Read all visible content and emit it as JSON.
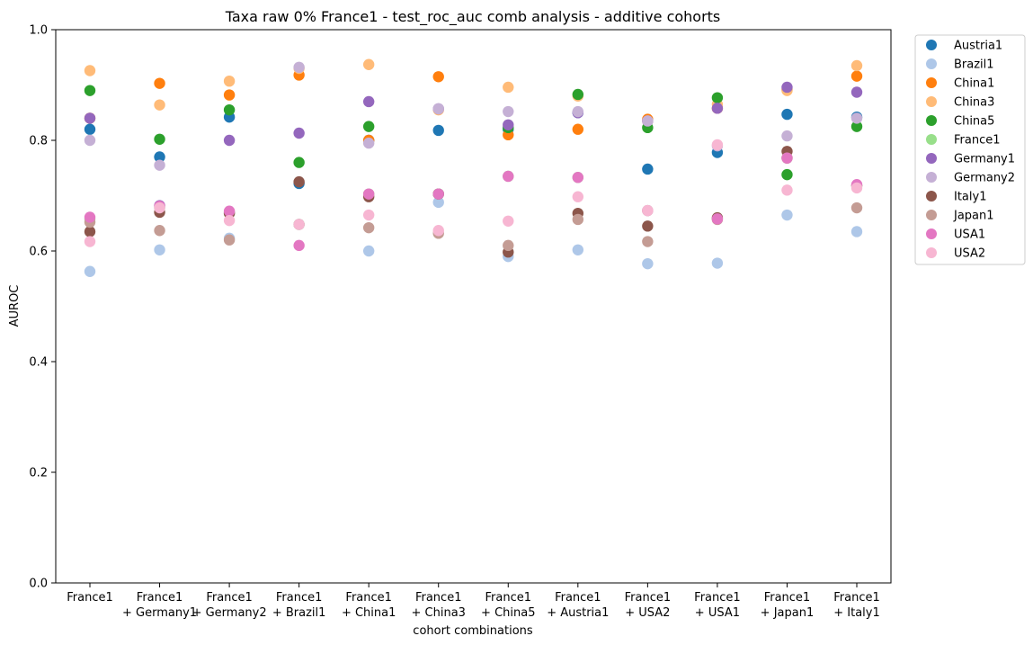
{
  "chart_data": {
    "type": "scatter",
    "title": "Taxa raw 0% France1 - test_roc_auc comb analysis - additive cohorts",
    "xlabel": "cohort combinations",
    "ylabel": "AUROC",
    "ylim": [
      0,
      1.0
    ],
    "yticks": [
      "0.0",
      "0.2",
      "0.4",
      "0.6",
      "0.8",
      "1.0"
    ],
    "categories": [
      [
        "France1"
      ],
      [
        "France1",
        "+ Germany1"
      ],
      [
        "France1",
        "+ Germany2"
      ],
      [
        "France1",
        "+ Brazil1"
      ],
      [
        "France1",
        "+ China1"
      ],
      [
        "France1",
        "+ China3"
      ],
      [
        "France1",
        "+ China5"
      ],
      [
        "France1",
        "+ Austria1"
      ],
      [
        "France1",
        "+ USA2"
      ],
      [
        "France1",
        "+ USA1"
      ],
      [
        "France1",
        "+ Japan1"
      ],
      [
        "France1",
        "+ Italy1"
      ]
    ],
    "legend_position": "outside top-right",
    "grid": false,
    "series": [
      {
        "name": "Austria1",
        "color": "#1f77b4",
        "values": [
          0.82,
          0.77,
          0.842,
          0.722,
          0.8,
          0.818,
          0.82,
          0.85,
          0.748,
          0.778,
          0.847,
          0.842
        ]
      },
      {
        "name": "Brazil1",
        "color": "#aec7e8",
        "values": [
          0.563,
          0.602,
          0.623,
          0.648,
          0.6,
          0.688,
          0.59,
          0.602,
          0.577,
          0.578,
          0.665,
          0.635
        ]
      },
      {
        "name": "China1",
        "color": "#ff7f0e",
        "values": [
          0.84,
          0.903,
          0.882,
          0.918,
          0.8,
          0.915,
          0.81,
          0.82,
          0.838,
          0.858,
          0.892,
          0.916
        ]
      },
      {
        "name": "China3",
        "color": "#ffbb78",
        "values": [
          0.926,
          0.864,
          0.907,
          0.93,
          0.937,
          0.855,
          0.896,
          0.88,
          0.835,
          0.865,
          0.89,
          0.935
        ]
      },
      {
        "name": "China5",
        "color": "#2ca02c",
        "values": [
          0.89,
          0.802,
          0.855,
          0.76,
          0.825,
          0.703,
          0.823,
          0.883,
          0.823,
          0.877,
          0.738,
          0.825
        ]
      },
      {
        "name": "France1",
        "color": "#98df8a",
        "values": [
          0.658,
          0.678,
          0.668,
          0.648,
          0.703,
          0.703,
          0.735,
          0.733,
          0.673,
          0.658,
          0.768,
          0.718
        ]
      },
      {
        "name": "Germany1",
        "color": "#9467bd",
        "values": [
          0.84,
          0.682,
          0.8,
          0.813,
          0.87,
          0.857,
          0.828,
          0.85,
          0.835,
          0.858,
          0.896,
          0.887
        ]
      },
      {
        "name": "Germany2",
        "color": "#c5b0d5",
        "values": [
          0.8,
          0.755,
          0.67,
          0.932,
          0.795,
          0.857,
          0.852,
          0.852,
          0.835,
          0.79,
          0.808,
          0.84
        ]
      },
      {
        "name": "Italy1",
        "color": "#8c564b",
        "values": [
          0.635,
          0.67,
          0.668,
          0.725,
          0.698,
          0.703,
          0.598,
          0.668,
          0.645,
          0.66,
          0.78,
          0.718
        ]
      },
      {
        "name": "Japan1",
        "color": "#c49c94",
        "values": [
          0.652,
          0.637,
          0.62,
          0.648,
          0.642,
          0.632,
          0.61,
          0.657,
          0.617,
          0.657,
          0.768,
          0.678
        ]
      },
      {
        "name": "USA1",
        "color": "#e377c2",
        "values": [
          0.661,
          0.681,
          0.672,
          0.61,
          0.703,
          0.703,
          0.735,
          0.733,
          0.673,
          0.658,
          0.768,
          0.72
        ]
      },
      {
        "name": "USA2",
        "color": "#f7b6d2",
        "values": [
          0.617,
          0.678,
          0.655,
          0.648,
          0.665,
          0.637,
          0.654,
          0.698,
          0.673,
          0.792,
          0.71,
          0.714
        ]
      }
    ]
  }
}
